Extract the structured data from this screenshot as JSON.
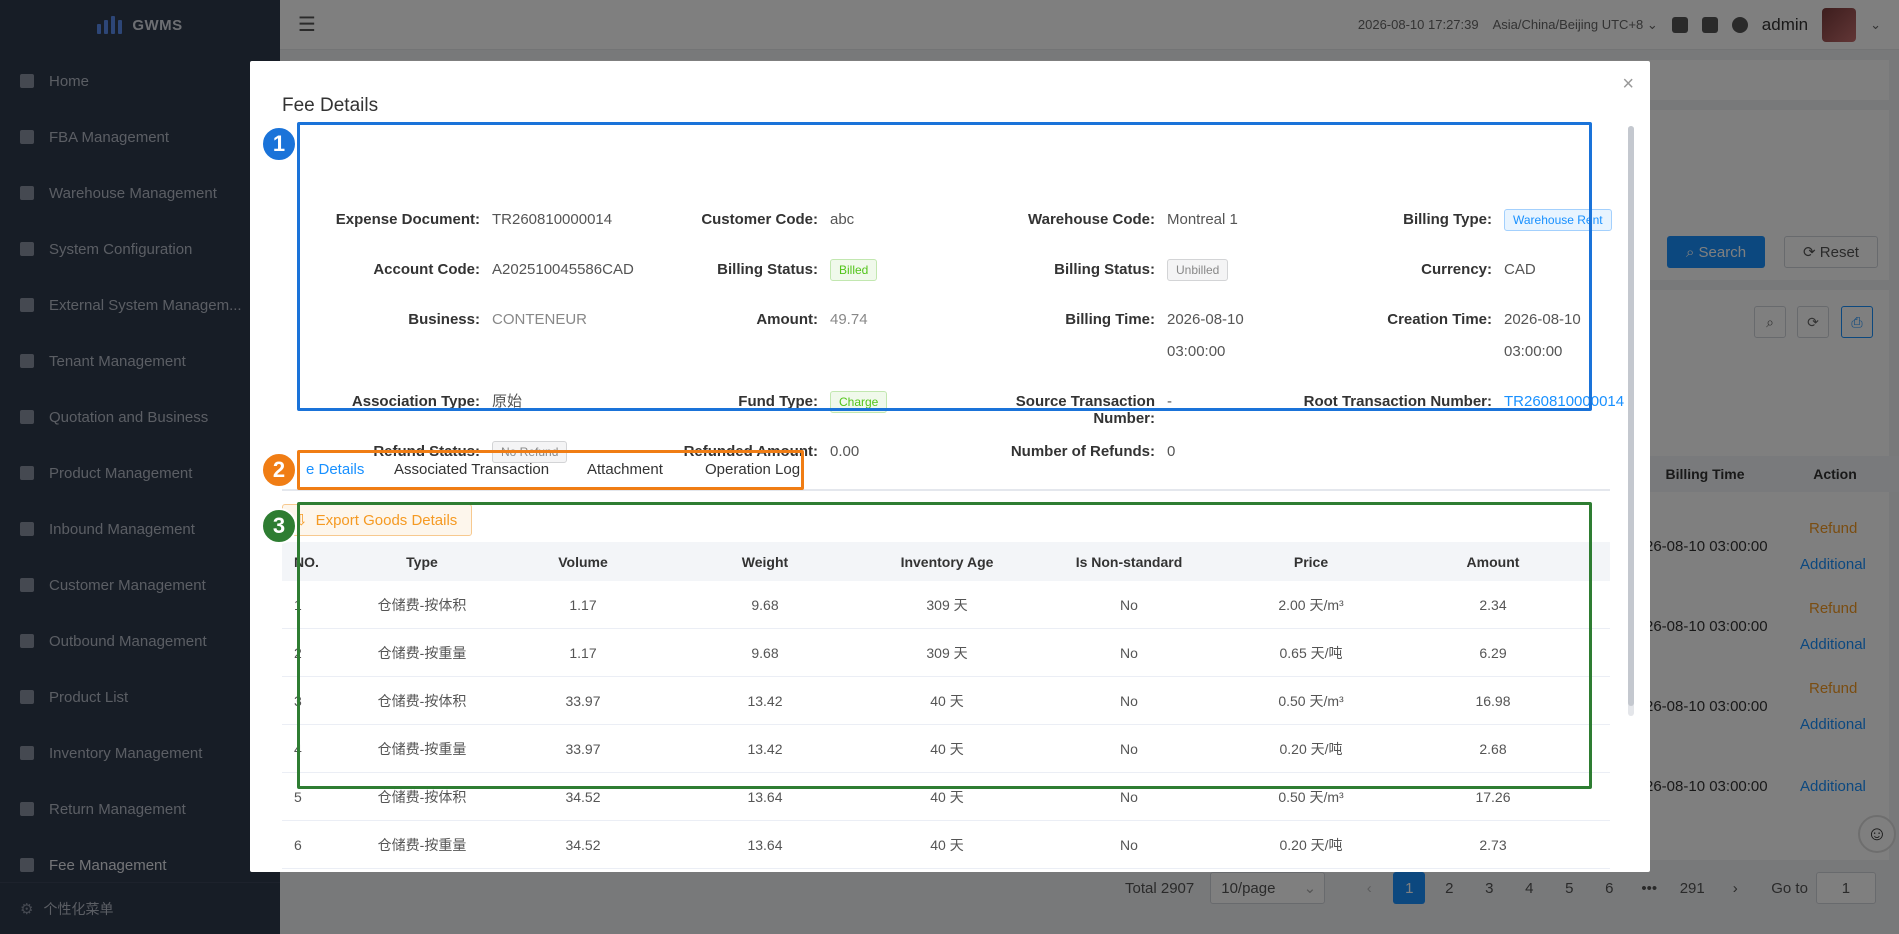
{
  "app": {
    "name": "GWMS"
  },
  "sidebar": {
    "items": [
      {
        "label": "Home",
        "icon": "dashboard-icon"
      },
      {
        "label": "FBA Management",
        "icon": "document-icon"
      },
      {
        "label": "Warehouse Management",
        "icon": "globe-icon"
      },
      {
        "label": "System Configuration",
        "icon": "document-icon"
      },
      {
        "label": "External System Managem...",
        "icon": "grid-icon"
      },
      {
        "label": "Tenant Management",
        "icon": "bar-chart-icon"
      },
      {
        "label": "Quotation and Business",
        "icon": "document-icon"
      },
      {
        "label": "Product Management",
        "icon": "cart-icon"
      },
      {
        "label": "Inbound Management",
        "icon": "home-icon"
      },
      {
        "label": "Customer Management",
        "icon": "user-icon"
      },
      {
        "label": "Outbound Management",
        "icon": "grid-icon"
      },
      {
        "label": "Product List",
        "icon": "book-icon"
      },
      {
        "label": "Inventory Management",
        "icon": "table-icon"
      },
      {
        "label": "Return Management",
        "icon": "document-icon"
      },
      {
        "label": "Fee Management",
        "icon": "yen-icon"
      }
    ],
    "footer_label": "个性化菜单"
  },
  "header": {
    "datetime": "2026-08-10 17:27:39",
    "timezone": "Asia/China/Beijing UTC+8",
    "user": "admin"
  },
  "background": {
    "search_label": "Search",
    "reset_label": "Reset",
    "columns": {
      "billing_time": "Billing Time",
      "action": "Action"
    },
    "rows": [
      {
        "time": "26-08-10 03:00:00",
        "refund": "Refund",
        "additional": "Additional"
      },
      {
        "time": "26-08-10 03:00:00",
        "refund": "Refund",
        "additional": "Additional"
      },
      {
        "time": "26-08-10 03:00:00",
        "refund": "Refund",
        "additional": "Additional"
      },
      {
        "time": "26-08-10 03:00:00",
        "refund": "",
        "additional": "Additional"
      }
    ],
    "pagination": {
      "total": "Total 2907",
      "page_size": "10/page",
      "pages": [
        "1",
        "2",
        "3",
        "4",
        "5",
        "6",
        "291"
      ],
      "ellipsis": "•••",
      "goto_label": "Go to",
      "goto_value": "1"
    }
  },
  "modal": {
    "title": "Fee Details",
    "fields": {
      "expense_document": {
        "label": "Expense Document:",
        "value": "TR260810000014"
      },
      "customer_code": {
        "label": "Customer Code:",
        "value": "abc"
      },
      "warehouse_code": {
        "label": "Warehouse Code:",
        "value": "Montreal 1"
      },
      "billing_type": {
        "label": "Billing Type:",
        "value": "Warehouse Rent"
      },
      "account_code": {
        "label": "Account Code:",
        "value": "A202510045586CAD"
      },
      "billing_status_1": {
        "label": "Billing Status:",
        "value": "Billed"
      },
      "billing_status_2": {
        "label": "Billing Status:",
        "value": "Unbilled"
      },
      "currency": {
        "label": "Currency:",
        "value": "CAD"
      },
      "business": {
        "label": "Business:",
        "value": "CONTENEUR"
      },
      "amount": {
        "label": "Amount:",
        "value": "49.74"
      },
      "billing_time": {
        "label": "Billing Time:",
        "value": "2026-08-10",
        "value2": "03:00:00"
      },
      "creation_time": {
        "label": "Creation Time:",
        "value": "2026-08-10",
        "value2": "03:00:00"
      },
      "association_type": {
        "label": "Association Type:",
        "value": "原始"
      },
      "fund_type": {
        "label": "Fund Type:",
        "value": "Charge"
      },
      "source_txn": {
        "label": "Source Transaction Number:",
        "value": "-"
      },
      "root_txn": {
        "label": "Root Transaction Number:",
        "value": "TR260810000014"
      },
      "refund_status": {
        "label": "Refund Status:",
        "value": "No Refund"
      },
      "refunded_amount": {
        "label": "Refunded Amount:",
        "value": "0.00"
      },
      "number_of_refunds": {
        "label": "Number of Refunds:",
        "value": "0"
      }
    },
    "tabs": [
      "e Details",
      "Associated Transaction",
      "Attachment",
      "Operation Log"
    ],
    "export_label": "Export Goods Details",
    "table": {
      "headers": [
        "NO.",
        "Type",
        "Volume",
        "Weight",
        "Inventory Age",
        "Is Non-standard",
        "Price",
        "Amount"
      ],
      "rows": [
        [
          "1",
          "仓储费-按体积",
          "1.17",
          "9.68",
          "309 天",
          "No",
          "2.00 天/m³",
          "2.34"
        ],
        [
          "2",
          "仓储费-按重量",
          "1.17",
          "9.68",
          "309 天",
          "No",
          "0.65 天/吨",
          "6.29"
        ],
        [
          "3",
          "仓储费-按体积",
          "33.97",
          "13.42",
          "40 天",
          "No",
          "0.50 天/m³",
          "16.98"
        ],
        [
          "4",
          "仓储费-按重量",
          "33.97",
          "13.42",
          "40 天",
          "No",
          "0.20 天/吨",
          "2.68"
        ],
        [
          "5",
          "仓储费-按体积",
          "34.52",
          "13.64",
          "40 天",
          "No",
          "0.50 天/m³",
          "17.26"
        ],
        [
          "6",
          "仓储费-按重量",
          "34.52",
          "13.64",
          "40 天",
          "No",
          "0.20 天/吨",
          "2.73"
        ]
      ]
    }
  },
  "annotations": [
    {
      "number": "1",
      "color": "#1a73d9"
    },
    {
      "number": "2",
      "color": "#f07d14"
    },
    {
      "number": "3",
      "color": "#2e7d32"
    }
  ]
}
